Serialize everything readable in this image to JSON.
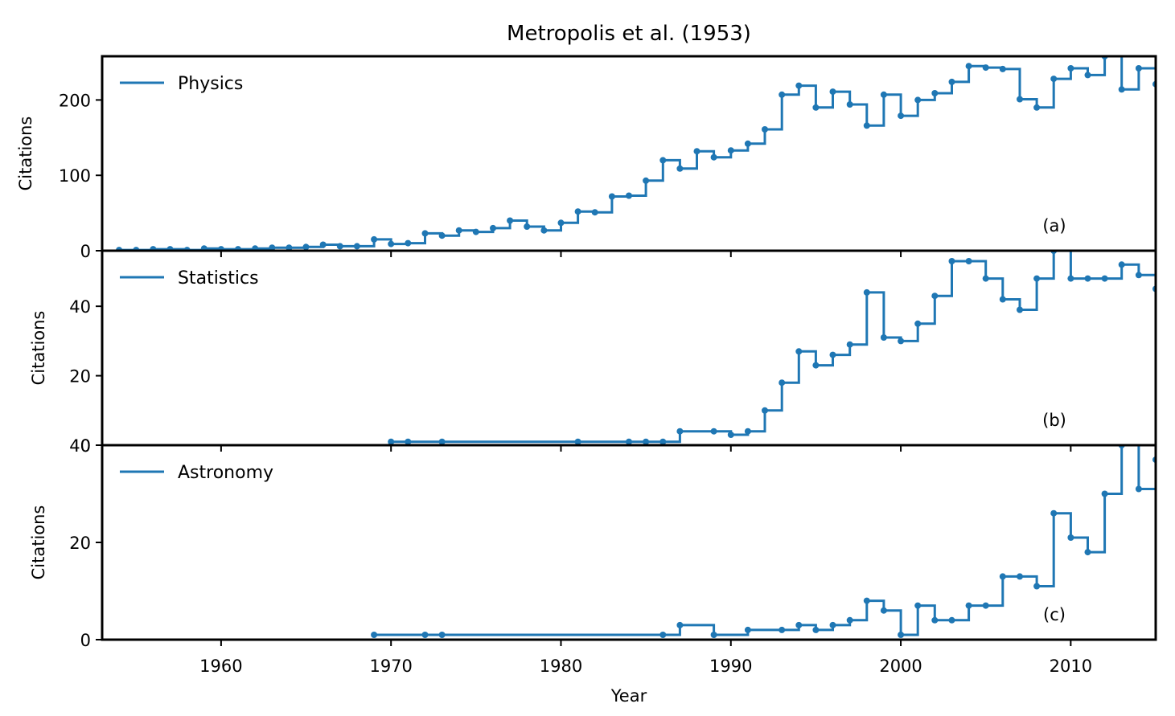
{
  "figure": {
    "title": "Metropolis et al. (1953)",
    "xlabel": "Year",
    "series_color": "#1f77b4"
  },
  "chart_data": [
    {
      "type": "line",
      "drawstyle": "steps-post",
      "markers": true,
      "title": "Metropolis et al. (1953)",
      "panel_label": "(a)",
      "xlabel": "",
      "ylabel": "Citations",
      "xlim": [
        1953,
        2015
      ],
      "ylim": [
        0,
        258
      ],
      "xticks": [
        1960,
        1970,
        1980,
        1990,
        2000,
        2010
      ],
      "yticks": [
        0,
        100,
        200
      ],
      "legend": "top-left",
      "series": [
        {
          "name": "Physics",
          "color": "#1f77b4",
          "x": [
            1954,
            1955,
            1956,
            1957,
            1958,
            1959,
            1960,
            1961,
            1962,
            1963,
            1964,
            1965,
            1966,
            1967,
            1968,
            1969,
            1970,
            1971,
            1972,
            1973,
            1974,
            1975,
            1976,
            1977,
            1978,
            1979,
            1980,
            1981,
            1982,
            1983,
            1984,
            1985,
            1986,
            1987,
            1988,
            1989,
            1990,
            1991,
            1992,
            1993,
            1994,
            1995,
            1996,
            1997,
            1998,
            1999,
            2000,
            2001,
            2002,
            2003,
            2004,
            2005,
            2006,
            2007,
            2008,
            2009,
            2010,
            2011,
            2012,
            2013,
            2014,
            2015
          ],
          "y": [
            1,
            1,
            2,
            2,
            1,
            3,
            2,
            2,
            3,
            4,
            4,
            5,
            8,
            6,
            6,
            15,
            9,
            10,
            23,
            20,
            27,
            25,
            30,
            40,
            32,
            27,
            37,
            52,
            51,
            72,
            73,
            93,
            120,
            109,
            132,
            124,
            133,
            142,
            161,
            207,
            219,
            190,
            211,
            194,
            166,
            207,
            179,
            200,
            209,
            224,
            245,
            243,
            241,
            201,
            190,
            228,
            242,
            233,
            258,
            214,
            242,
            221
          ]
        }
      ]
    },
    {
      "type": "line",
      "drawstyle": "steps-post",
      "markers": true,
      "panel_label": "(b)",
      "xlabel": "",
      "ylabel": "Citations",
      "xlim": [
        1953,
        2015
      ],
      "ylim": [
        0,
        56
      ],
      "xticks": [
        1960,
        1970,
        1980,
        1990,
        2000,
        2010
      ],
      "yticks": [
        0,
        20,
        40
      ],
      "legend": "top-left",
      "series": [
        {
          "name": "Statistics",
          "color": "#1f77b4",
          "x": [
            1970,
            1971,
            1973,
            1981,
            1984,
            1985,
            1986,
            1987,
            1989,
            1990,
            1991,
            1992,
            1993,
            1994,
            1995,
            1996,
            1997,
            1998,
            1999,
            2000,
            2001,
            2002,
            2003,
            2004,
            2005,
            2006,
            2007,
            2008,
            2009,
            2010,
            2011,
            2012,
            2013,
            2014,
            2015
          ],
          "y": [
            1,
            1,
            1,
            1,
            1,
            1,
            1,
            4,
            4,
            3,
            4,
            10,
            18,
            27,
            23,
            26,
            29,
            44,
            31,
            30,
            35,
            43,
            53,
            53,
            48,
            42,
            39,
            48,
            56,
            48,
            48,
            48,
            52,
            49,
            45
          ]
        }
      ]
    },
    {
      "type": "line",
      "drawstyle": "steps-post",
      "markers": true,
      "panel_label": "(c)",
      "xlabel": "Year",
      "ylabel": "Citations",
      "xlim": [
        1953,
        2015
      ],
      "ylim": [
        0,
        40
      ],
      "xticks": [
        1960,
        1970,
        1980,
        1990,
        2000,
        2010
      ],
      "yticks": [
        0,
        20,
        40
      ],
      "legend": "top-left",
      "series": [
        {
          "name": "Astronomy",
          "color": "#1f77b4",
          "x": [
            1969,
            1972,
            1973,
            1986,
            1987,
            1989,
            1991,
            1993,
            1994,
            1995,
            1996,
            1997,
            1998,
            1999,
            2000,
            2001,
            2002,
            2003,
            2004,
            2005,
            2006,
            2007,
            2008,
            2009,
            2010,
            2011,
            2012,
            2013,
            2014,
            2015
          ],
          "y": [
            1,
            1,
            1,
            1,
            3,
            1,
            2,
            2,
            3,
            2,
            3,
            4,
            8,
            6,
            1,
            7,
            4,
            4,
            7,
            7,
            13,
            13,
            11,
            26,
            21,
            18,
            30,
            40,
            31,
            37
          ]
        }
      ]
    }
  ]
}
